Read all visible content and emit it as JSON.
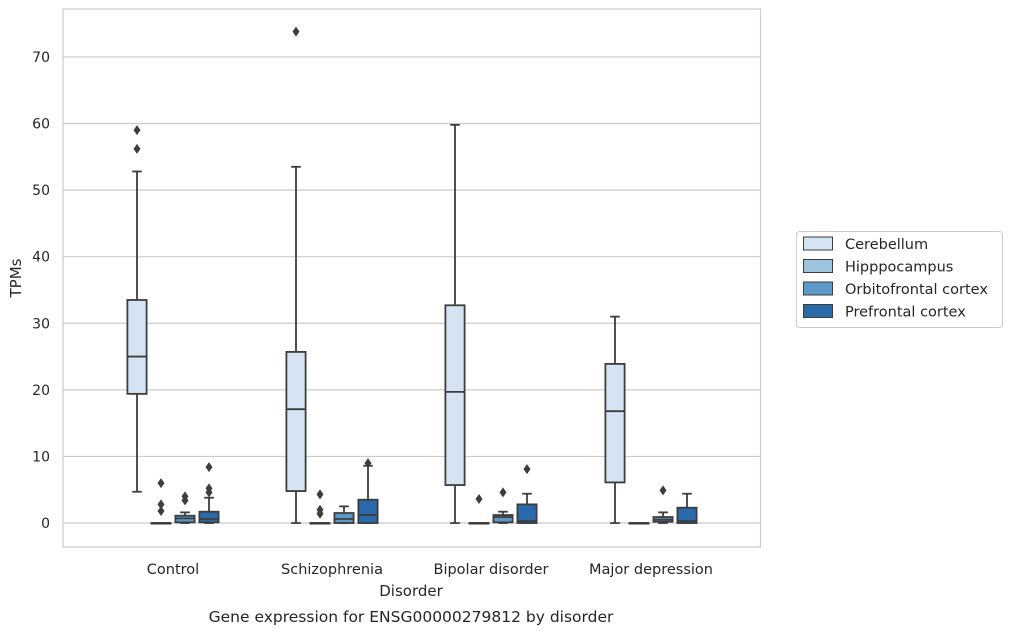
{
  "chart_data": {
    "type": "box",
    "title": "Gene expression for ENSG00000279812 by disorder",
    "xlabel": "Disorder",
    "ylabel": "TPMs",
    "ylim": [
      -3.6,
      77.2
    ],
    "yticks": [
      0,
      10,
      20,
      30,
      40,
      50,
      60,
      70
    ],
    "grid": "horizontal",
    "legend_position": "right",
    "categories": [
      "Control",
      "Schizophrenia",
      "Bipolar disorder",
      "Major depression"
    ],
    "series": [
      {
        "name": "Cerebellum",
        "color": "#d5e4f2",
        "boxes": [
          {
            "whislo": 4.7,
            "q1": 19.4,
            "med": 25.0,
            "q3": 33.5,
            "whishi": 52.8,
            "fliers": [
              56.2,
              59.0
            ]
          },
          {
            "whislo": 0.0,
            "q1": 4.8,
            "med": 17.1,
            "q3": 25.7,
            "whishi": 53.5,
            "fliers": [
              73.8
            ]
          },
          {
            "whislo": 0.0,
            "q1": 5.7,
            "med": 19.7,
            "q3": 32.7,
            "whishi": 59.8,
            "fliers": []
          },
          {
            "whislo": 0.0,
            "q1": 6.1,
            "med": 16.8,
            "q3": 23.9,
            "whishi": 31.0,
            "fliers": []
          }
        ]
      },
      {
        "name": "Hipppocampus",
        "color": "#9dc4de",
        "boxes": [
          {
            "whislo": 0.0,
            "q1": 0.0,
            "med": 0.0,
            "q3": 0.0,
            "whishi": 0.0,
            "fliers": [
              1.8,
              2.8,
              6.0
            ]
          },
          {
            "whislo": 0.0,
            "q1": 0.0,
            "med": 0.0,
            "q3": 0.0,
            "whishi": 0.0,
            "fliers": [
              1.4,
              2.0,
              4.3
            ]
          },
          {
            "whislo": 0.0,
            "q1": 0.0,
            "med": 0.0,
            "q3": 0.0,
            "whishi": 0.0,
            "fliers": [
              3.6
            ]
          },
          {
            "whislo": 0.0,
            "q1": 0.0,
            "med": 0.0,
            "q3": 0.0,
            "whishi": 0.0,
            "fliers": []
          }
        ]
      },
      {
        "name": "Orbitofrontal cortex",
        "color": "#5b9ac8",
        "boxes": [
          {
            "whislo": 0.0,
            "q1": 0.1,
            "med": 0.7,
            "q3": 1.1,
            "whishi": 1.6,
            "fliers": [
              3.4,
              4.0
            ]
          },
          {
            "whislo": 0.0,
            "q1": 0.0,
            "med": 0.6,
            "q3": 1.5,
            "whishi": 2.5,
            "fliers": []
          },
          {
            "whislo": 0.0,
            "q1": 0.1,
            "med": 0.9,
            "q3": 1.2,
            "whishi": 1.7,
            "fliers": [
              4.6
            ]
          },
          {
            "whislo": 0.0,
            "q1": 0.2,
            "med": 0.5,
            "q3": 0.9,
            "whishi": 1.6,
            "fliers": [
              4.9
            ]
          }
        ]
      },
      {
        "name": "Prefrontal cortex",
        "color": "#2a69aa",
        "boxes": [
          {
            "whislo": 0.0,
            "q1": 0.1,
            "med": 0.6,
            "q3": 1.7,
            "whishi": 3.8,
            "fliers": [
              4.6,
              5.2,
              8.4
            ]
          },
          {
            "whislo": 0.0,
            "q1": 0.0,
            "med": 1.2,
            "q3": 3.5,
            "whishi": 8.6,
            "fliers": [
              9.0
            ]
          },
          {
            "whislo": 0.0,
            "q1": 0.0,
            "med": 0.3,
            "q3": 2.8,
            "whishi": 4.4,
            "fliers": [
              8.1
            ]
          },
          {
            "whislo": 0.0,
            "q1": 0.0,
            "med": 0.3,
            "q3": 2.3,
            "whishi": 4.4,
            "fliers": []
          }
        ]
      }
    ]
  }
}
